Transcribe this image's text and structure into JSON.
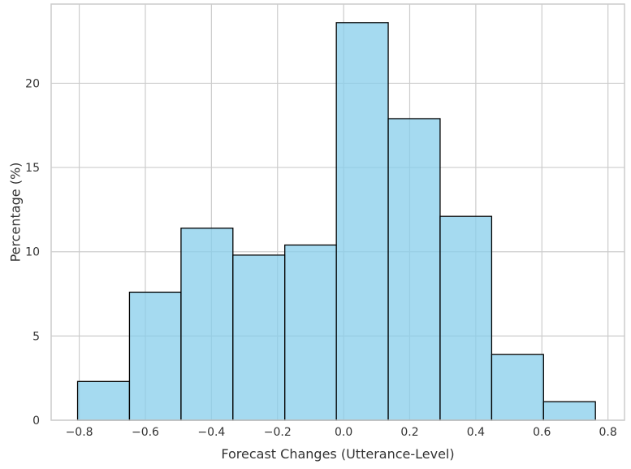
{
  "chart_data": {
    "type": "bar",
    "title": "",
    "xlabel": "Forecast Changes (Utterance-Level)",
    "ylabel": "Percentage (%)",
    "xlim": [
      -0.885,
      0.85
    ],
    "ylim": [
      0,
      24.7
    ],
    "grid": true,
    "bins": [
      {
        "x0": -0.805,
        "x1": -0.648,
        "value": 2.3
      },
      {
        "x0": -0.648,
        "x1": -0.492,
        "value": 7.6
      },
      {
        "x0": -0.492,
        "x1": -0.335,
        "value": 11.4
      },
      {
        "x0": -0.335,
        "x1": -0.178,
        "value": 9.8
      },
      {
        "x0": -0.178,
        "x1": -0.022,
        "value": 10.4
      },
      {
        "x0": -0.022,
        "x1": 0.135,
        "value": 23.6
      },
      {
        "x0": 0.135,
        "x1": 0.292,
        "value": 17.9
      },
      {
        "x0": 0.292,
        "x1": 0.448,
        "value": 12.1
      },
      {
        "x0": 0.448,
        "x1": 0.605,
        "value": 3.9
      },
      {
        "x0": 0.605,
        "x1": 0.762,
        "value": 1.1
      }
    ],
    "x_ticks": [
      {
        "value": -0.8,
        "label": "−0.8"
      },
      {
        "value": -0.6,
        "label": "−0.6"
      },
      {
        "value": -0.4,
        "label": "−0.4"
      },
      {
        "value": -0.2,
        "label": "−0.2"
      },
      {
        "value": 0.0,
        "label": "0.0"
      },
      {
        "value": 0.2,
        "label": "0.2"
      },
      {
        "value": 0.4,
        "label": "0.4"
      },
      {
        "value": 0.6,
        "label": "0.6"
      },
      {
        "value": 0.8,
        "label": "0.8"
      }
    ],
    "y_ticks": [
      {
        "value": 0,
        "label": "0"
      },
      {
        "value": 5,
        "label": "5"
      },
      {
        "value": 10,
        "label": "10"
      },
      {
        "value": 15,
        "label": "15"
      },
      {
        "value": 20,
        "label": "20"
      }
    ],
    "colors": {
      "bar_fill": "#87ceeb",
      "bar_edge": "#000000",
      "grid": "#cccccc",
      "frame": "#cccccc",
      "text": "#333333"
    }
  }
}
